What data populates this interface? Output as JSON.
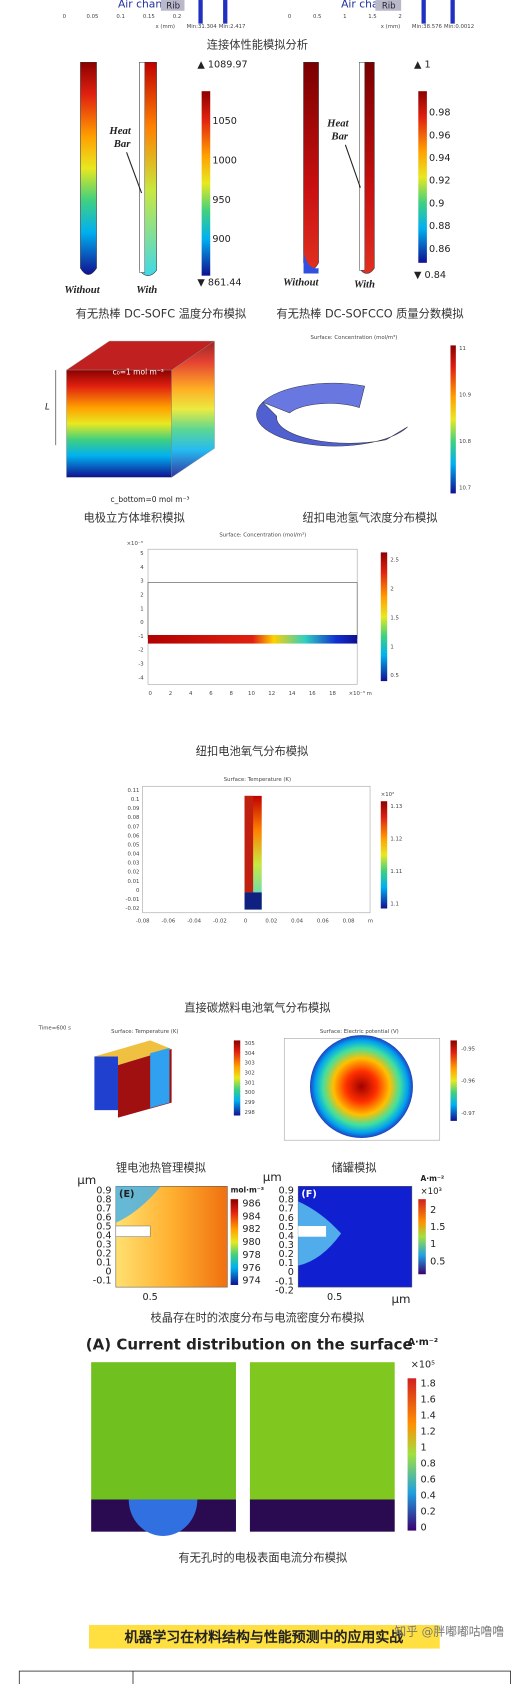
{
  "top": {
    "left": {
      "channel": "Air channel",
      "rib": "Rib",
      "ticks": [
        "0",
        "0.05",
        "0.1",
        "0.15",
        "0.2"
      ],
      "axis": "x (mm)",
      "min_a": "Min:31.304",
      "min_b": "Min:2.417"
    },
    "right": {
      "channel": "Air channel",
      "rib": "Rib",
      "ticks": [
        "0",
        "0.5",
        "1",
        "1.5",
        "2"
      ],
      "axis": "x (mm)",
      "min_a": "Min:38.576",
      "min_b": "Min:0.0012"
    }
  },
  "caption_connector": "连接体性能模拟分析",
  "heat_temp": {
    "label": "Heat",
    "label2": "Bar",
    "without": "Without",
    "with": "With",
    "max": "▲ 1089.97",
    "ticks": [
      "1050",
      "1000",
      "950",
      "900"
    ],
    "min": "▼ 861.44",
    "caption": "有无热棒 DC-SOFC 温度分布模拟"
  },
  "heat_co": {
    "label": "Heat",
    "label2": "Bar",
    "without": "Without",
    "with": "With",
    "max": "▲ 1",
    "ticks": [
      "0.98",
      "0.96",
      "0.94",
      "0.92",
      "0.9",
      "0.88",
      "0.86"
    ],
    "min": "▼ 0.84",
    "caption": "有无热棒 DC-SOFCCO 质量分数模拟"
  },
  "cube": {
    "top_label": "c₀=1 mol m⁻³",
    "side_label": "L",
    "bottom_label": "c_bottom=0 mol m⁻³",
    "caption": "电极立方体堆积模拟"
  },
  "button_h2": {
    "title": "Surface: Concentration (mol/m³)",
    "ticks": [
      "11",
      "10.9",
      "10.8",
      "10.7"
    ],
    "caption": "纽扣电池氢气浓度分布模拟"
  },
  "button_o2": {
    "title": "Surface: Concentration (mol/m³)",
    "y_unit": "×10⁻³",
    "yticks": [
      "5",
      "4",
      "3",
      "2",
      "1",
      "0",
      "-1",
      "-2",
      "-3",
      "-4"
    ],
    "xticks": [
      "0",
      "2",
      "4",
      "6",
      "8",
      "10",
      "12",
      "14",
      "16",
      "18"
    ],
    "x_unit": "×10⁻³ m",
    "cbar": [
      "2.5",
      "2",
      "1.5",
      "1",
      "0.5"
    ],
    "caption": "纽扣电池氧气分布模拟"
  },
  "dcfc": {
    "title": "Surface: Temperature (K)",
    "yticks": [
      "0.11",
      "0.1",
      "0.09",
      "0.08",
      "0.07",
      "0.06",
      "0.05",
      "0.04",
      "0.03",
      "0.02",
      "0.01",
      "0",
      "-0.01",
      "-0.02"
    ],
    "xticks": [
      "-0.08",
      "-0.06",
      "-0.04",
      "-0.02",
      "0",
      "0.02",
      "0.04",
      "0.06",
      "0.08"
    ],
    "x_unit": "m",
    "cbar_unit": "×10²",
    "cbar": [
      "1.13",
      "1.12",
      "1.11",
      "1.1"
    ],
    "caption": "直接碳燃料电池氧气分布模拟"
  },
  "battery": {
    "time": "Time=600 s",
    "title": "Surface: Temperature (K)",
    "cbar": [
      "305",
      "304",
      "303",
      "302",
      "301",
      "300",
      "299",
      "298"
    ],
    "caption": "锂电池热管理模拟"
  },
  "tank": {
    "title": "Surface: Electric potential (V)",
    "cbar": [
      "-0.95",
      "-0.96",
      "-0.97"
    ],
    "caption": "储罐模拟"
  },
  "dendrite": {
    "unit_left": "μm",
    "unit_mid": "μm",
    "panel_e": "(E)",
    "panel_f": "(F)",
    "e_unit": "mol·m⁻³",
    "e_cbar": [
      "986",
      "984",
      "982",
      "980",
      "978",
      "976",
      "974"
    ],
    "e_yticks": [
      "0.9",
      "0.8",
      "0.7",
      "0.6",
      "0.5",
      "0.4",
      "0.3",
      "0.2",
      "0.1",
      "0",
      "-0.1"
    ],
    "e_xtick": "0.5",
    "f_unit": "A·m⁻²",
    "f_scale": "×10³",
    "f_cbar": [
      "2",
      "1.5",
      "1",
      "0.5"
    ],
    "f_yticks": [
      "0.9",
      "0.8",
      "0.7",
      "0.6",
      "0.5",
      "0.4",
      "0.3",
      "0.2",
      "0.1",
      "0",
      "-0.1",
      "-0.2"
    ],
    "f_xtick": "0.5",
    "x_unit": "μm",
    "caption": "枝晶存在时的浓度分布与电流密度分布模拟"
  },
  "current": {
    "title": "(A) Current distribution on the surface",
    "unit": "A·m⁻²",
    "scale": "×10⁵",
    "cbar": [
      "1.8",
      "1.6",
      "1.4",
      "1.2",
      "1",
      "0.8",
      "0.6",
      "0.4",
      "0.2",
      "0"
    ],
    "caption": "有无孔时的电极表面电流分布模拟"
  },
  "heading": "机器学习在材料结构与性能预测中的应用实战",
  "watermark": "知乎 @胖嘟嘟咕噜噜"
}
